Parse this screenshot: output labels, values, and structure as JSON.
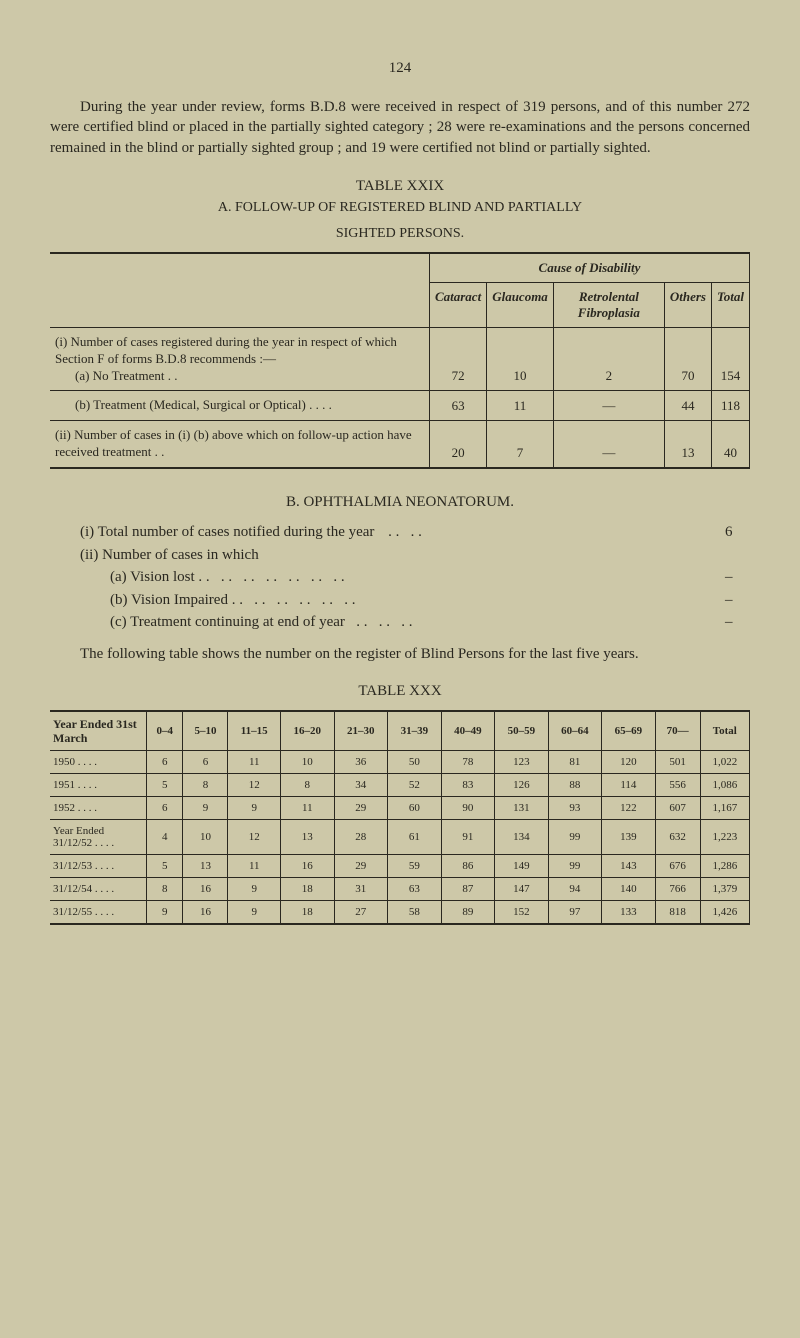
{
  "page_number": "124",
  "intro": "During the year under review, forms B.D.8 were received in respect of 319 persons, and of this number 272 were certified blind or placed in the partially sighted category ; 28 were re-examinations and the persons concerned remained in the blind or partially sighted group ; and 19 were certified not blind or partially sighted.",
  "table1": {
    "title": "TABLE XXIX",
    "subtitle_line1": "A.   FOLLOW-UP OF REGISTERED BLIND AND PARTIALLY",
    "subtitle_line2": "SIGHTED PERSONS.",
    "cause_header": "Cause of Disability",
    "cols": [
      "Cataract",
      "Glaucoma",
      "Retrolental Fibroplasia",
      "Others",
      "Total"
    ],
    "row_i_label": "(i) Number of cases regis­tered during the year in respect of which Section F of forms B.D.8 recom­mends :—",
    "row_i_a_label": "(a) No Treatment    . .",
    "row_i_a": [
      "72",
      "10",
      "2",
      "70",
      "154"
    ],
    "row_i_b_label": "(b) Treatment (Medical, Surgical or Optical) . .     . .",
    "row_i_b": [
      "63",
      "11",
      "—",
      "44",
      "118"
    ],
    "row_ii_label": "(ii) Number of cases in (i) (b) above which on fol­low-up action have received treatment . .",
    "row_ii": [
      "20",
      "7",
      "—",
      "13",
      "40"
    ]
  },
  "section_b": {
    "heading": "B. OPHTHALMIA NEONATORUM.",
    "i": "(i) Total number of cases notified during the year",
    "i_val": "6",
    "ii": "(ii) Number of cases in which",
    "a": "(a) Vision lost  . .",
    "a_val": "–",
    "b": "(b) Vision Impaired    . .",
    "b_val": "–",
    "c": "(c) Treatment continuing at end of year",
    "c_val": "–",
    "follow": "The following table shows the number on the register of Blind Persons for the last five years."
  },
  "table2": {
    "title": "TABLE XXX",
    "header_label": "Year Ended 31st March",
    "cols": [
      "0–4",
      "5–10",
      "11–15",
      "16–20",
      "21–30",
      "31–39",
      "40–49",
      "50–59",
      "60–64",
      "65–69",
      "70—",
      "Total"
    ],
    "rows": [
      {
        "label": "1950     . .     . .",
        "vals": [
          "6",
          "6",
          "11",
          "10",
          "36",
          "50",
          "78",
          "123",
          "81",
          "120",
          "501",
          "1,022"
        ]
      },
      {
        "label": "1951     . .     . .",
        "vals": [
          "5",
          "8",
          "12",
          "8",
          "34",
          "52",
          "83",
          "126",
          "88",
          "114",
          "556",
          "1,086"
        ]
      },
      {
        "label": "1952     . .     . .",
        "vals": [
          "6",
          "9",
          "9",
          "11",
          "29",
          "60",
          "90",
          "131",
          "93",
          "122",
          "607",
          "1,167"
        ]
      },
      {
        "label": "Year Ended 31/12/52 . .     . .",
        "vals": [
          "4",
          "10",
          "12",
          "13",
          "28",
          "61",
          "91",
          "134",
          "99",
          "139",
          "632",
          "1,223"
        ]
      },
      {
        "label": "31/12/53 . .     . .",
        "vals": [
          "5",
          "13",
          "11",
          "16",
          "29",
          "59",
          "86",
          "149",
          "99",
          "143",
          "676",
          "1,286"
        ]
      },
      {
        "label": "31/12/54 . .     . .",
        "vals": [
          "8",
          "16",
          "9",
          "18",
          "31",
          "63",
          "87",
          "147",
          "94",
          "140",
          "766",
          "1,379"
        ]
      },
      {
        "label": "31/12/55 . .     . .",
        "vals": [
          "9",
          "16",
          "9",
          "18",
          "27",
          "58",
          "89",
          "152",
          "97",
          "133",
          "818",
          "1,426"
        ]
      }
    ]
  }
}
